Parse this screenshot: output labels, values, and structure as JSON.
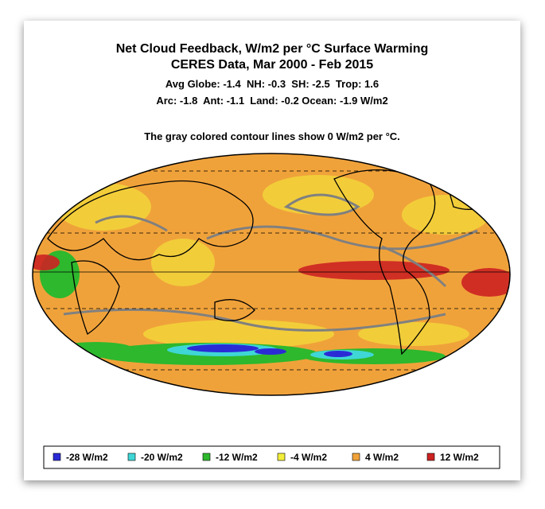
{
  "title": [
    "Net Cloud Feedback, W/m2 per °C Surface Warming",
    "CERES Data, Mar 2000 - Feb 2015"
  ],
  "stats": [
    "Avg Globe: -1.4  NH: -0.3  SH: -2.5  Trop: 1.6",
    "Arc: -1.8  Ant: -1.1  Land: -0.2 Ocean: -1.9 W/m2"
  ],
  "note": "The gray colored contour lines show 0 W/m2 per °C.",
  "legend": [
    {
      "label": "-28 W/m2",
      "color": "#2b2bd6"
    },
    {
      "label": "-20 W/m2",
      "color": "#3fd6d6"
    },
    {
      "label": "-12 W/m2",
      "color": "#2db82d"
    },
    {
      "label": "-4 W/m2",
      "color": "#f2ee3a"
    },
    {
      "label": "4 W/m2",
      "color": "#f0a23a"
    },
    {
      "label": "12 W/m2",
      "color": "#cc2222"
    }
  ]
}
